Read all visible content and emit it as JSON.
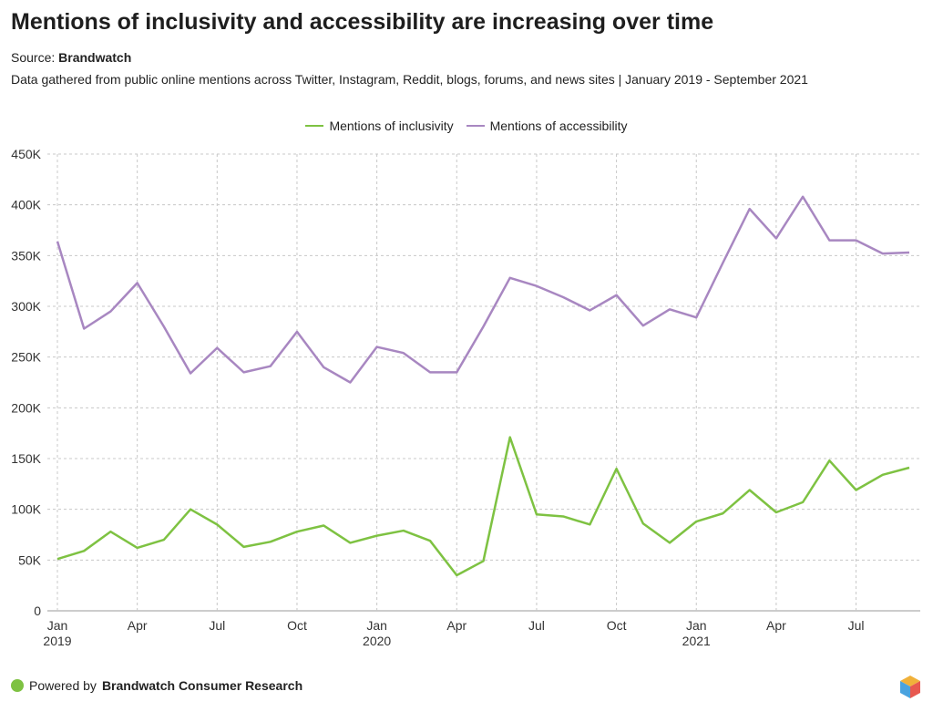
{
  "title": "Mentions of inclusivity and accessibility are increasing over time",
  "source_label": "Source: ",
  "source_name": "Brandwatch",
  "description": "Data gathered from public online mentions across Twitter, Instagram, Reddit, blogs, forums, and news sites | January 2019 - September 2021",
  "footer": {
    "prefix": "Powered by ",
    "brand": "Brandwatch Consumer Research"
  },
  "colors": {
    "inclusivity": "#7ec242",
    "accessibility": "#a887c1",
    "grid": "#c8c8c8"
  },
  "chart_data": {
    "type": "line",
    "x": [
      "2019-01",
      "2019-02",
      "2019-03",
      "2019-04",
      "2019-05",
      "2019-06",
      "2019-07",
      "2019-08",
      "2019-09",
      "2019-10",
      "2019-11",
      "2019-12",
      "2020-01",
      "2020-02",
      "2020-03",
      "2020-04",
      "2020-05",
      "2020-06",
      "2020-07",
      "2020-08",
      "2020-09",
      "2020-10",
      "2020-11",
      "2020-12",
      "2021-01",
      "2021-02",
      "2021-03",
      "2021-04",
      "2021-05",
      "2021-06",
      "2021-07",
      "2021-08",
      "2021-09"
    ],
    "series": [
      {
        "name": "Mentions of inclusivity",
        "values": [
          51000,
          59000,
          78000,
          62000,
          70000,
          100000,
          85000,
          63000,
          68000,
          78000,
          84000,
          67000,
          74000,
          79000,
          69000,
          35000,
          49000,
          171000,
          95000,
          93000,
          85000,
          140000,
          86000,
          67000,
          88000,
          96000,
          119000,
          97000,
          107000,
          148000,
          119000,
          134000,
          141000
        ]
      },
      {
        "name": "Mentions of accessibility",
        "values": [
          364000,
          278000,
          295000,
          323000,
          280000,
          234000,
          259000,
          235000,
          241000,
          275000,
          240000,
          225000,
          260000,
          254000,
          235000,
          235000,
          280000,
          328000,
          320000,
          309000,
          296000,
          311000,
          281000,
          297000,
          289000,
          343000,
          396000,
          367000,
          408000,
          365000,
          365000,
          352000,
          353000
        ]
      }
    ],
    "ylim": [
      0,
      450000
    ],
    "y_ticks": [
      {
        "value": 0,
        "label": "0"
      },
      {
        "value": 50000,
        "label": "50K"
      },
      {
        "value": 100000,
        "label": "100K"
      },
      {
        "value": 150000,
        "label": "150K"
      },
      {
        "value": 200000,
        "label": "200K"
      },
      {
        "value": 250000,
        "label": "250K"
      },
      {
        "value": 300000,
        "label": "300K"
      },
      {
        "value": 350000,
        "label": "350K"
      },
      {
        "value": 400000,
        "label": "400K"
      },
      {
        "value": 450000,
        "label": "450K"
      }
    ],
    "x_ticks": [
      {
        "index": 0,
        "label": "Jan",
        "year": "2019"
      },
      {
        "index": 3,
        "label": "Apr"
      },
      {
        "index": 6,
        "label": "Jul"
      },
      {
        "index": 9,
        "label": "Oct"
      },
      {
        "index": 12,
        "label": "Jan",
        "year": "2020"
      },
      {
        "index": 15,
        "label": "Apr"
      },
      {
        "index": 18,
        "label": "Jul"
      },
      {
        "index": 21,
        "label": "Oct"
      },
      {
        "index": 24,
        "label": "Jan",
        "year": "2021"
      },
      {
        "index": 27,
        "label": "Apr"
      },
      {
        "index": 30,
        "label": "Jul"
      }
    ],
    "grid": true,
    "legend_position": "top-center"
  }
}
